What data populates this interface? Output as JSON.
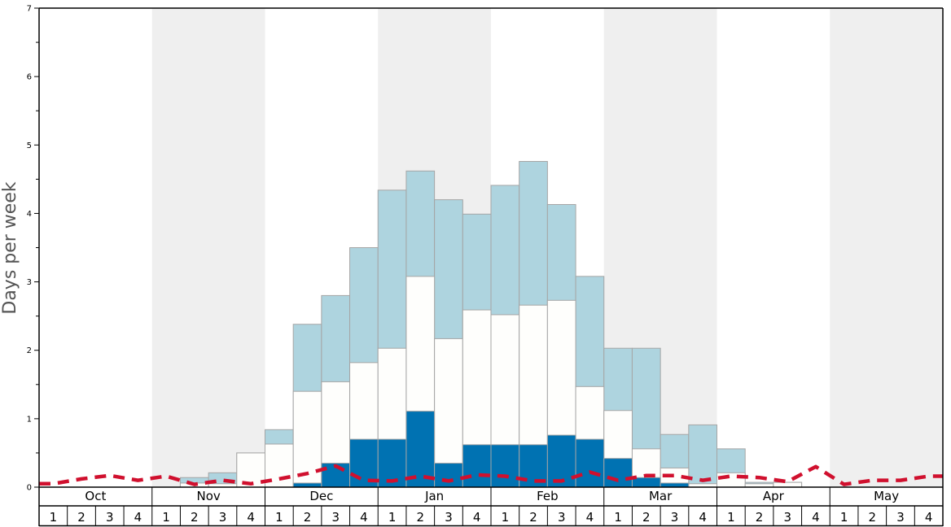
{
  "chart_data": {
    "type": "bar",
    "ylabel": "Days per week",
    "ylim": [
      0,
      7
    ],
    "y_ticks": [
      "0",
      "1",
      "2",
      "3",
      "4",
      "5",
      "6",
      "7"
    ],
    "months": [
      "Oct",
      "Nov",
      "Dec",
      "Jan",
      "Feb",
      "Mar",
      "Apr",
      "May"
    ],
    "weeks": [
      "1",
      "2",
      "3",
      "4"
    ],
    "colors": {
      "shade": "#efefef",
      "light_blue": "#aed4df",
      "white_bar": "#fefefc",
      "dark_blue": "#0072b2",
      "dashed_line": "#d0102e",
      "bar_edge": "#a5a5a5"
    },
    "series": [
      {
        "values": [
          0,
          0,
          0,
          0,
          0,
          0,
          0,
          0,
          0,
          0.06,
          0.35,
          0.7,
          0.7,
          1.11,
          0.35,
          0.62,
          0.62,
          0.62,
          0.76,
          0.7,
          0.42,
          0.14,
          0.06,
          0,
          0,
          0,
          0,
          0,
          0,
          0,
          0,
          0
        ]
      },
      {
        "values": [
          0,
          0,
          0,
          0,
          0,
          0.06,
          0.05,
          0.5,
          0.63,
          1.4,
          1.54,
          1.82,
          2.03,
          3.08,
          2.17,
          2.59,
          2.52,
          2.66,
          2.73,
          1.47,
          1.12,
          0.56,
          0.28,
          0.05,
          0.21,
          0.05,
          0.07,
          0,
          0,
          0,
          0,
          0
        ]
      },
      {
        "values": [
          0,
          0,
          0,
          0,
          0,
          0.14,
          0.21,
          0.5,
          0.84,
          2.38,
          2.8,
          3.5,
          4.34,
          4.62,
          4.2,
          3.99,
          4.41,
          4.76,
          4.13,
          3.08,
          2.03,
          2.03,
          0.77,
          0.91,
          0.56,
          0.07,
          0.07,
          0,
          0,
          0,
          0,
          0
        ]
      },
      {
        "values": [
          0.05,
          0.12,
          0.17,
          0.1,
          0.16,
          0.04,
          0.1,
          0.05,
          0.12,
          0.2,
          0.31,
          0.1,
          0.09,
          0.16,
          0.09,
          0.18,
          0.16,
          0.09,
          0.09,
          0.22,
          0.1,
          0.17,
          0.17,
          0.1,
          0.16,
          0.14,
          0.08,
          0.3,
          0.04,
          0.1,
          0.1,
          0.16
        ]
      }
    ],
    "legend": "none",
    "grid": false
  }
}
